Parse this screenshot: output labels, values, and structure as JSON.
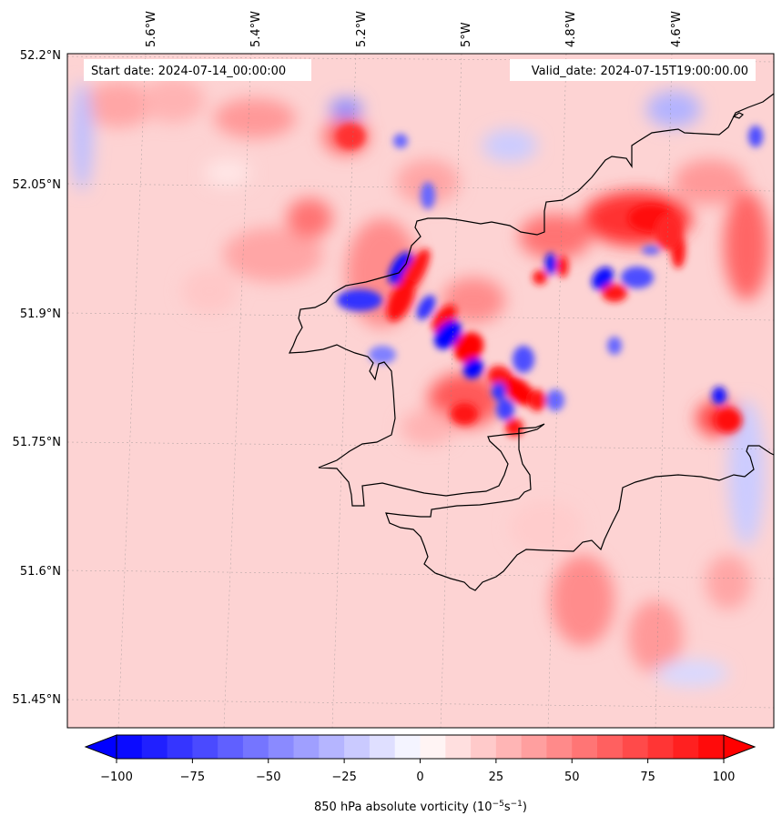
{
  "figure": {
    "start_label": "Start date: 2024-07-14_00:00:00",
    "valid_label": "Valid_date: 2024-07-15T19:00:00.00"
  },
  "map": {
    "lon_labels": [
      "5.6°W",
      "5.4°W",
      "5.2°W",
      "5°W",
      "4.8°W",
      "4.6°W"
    ],
    "lat_labels": [
      "52.2°N",
      "52.05°N",
      "51.9°N",
      "51.75°N",
      "51.6°N",
      "51.45°N"
    ]
  },
  "colorbar": {
    "ticks": [
      "−100",
      "−75",
      "−50",
      "−25",
      "0",
      "25",
      "50",
      "75",
      "100"
    ],
    "label": "850 hPa absolute vorticity (10",
    "label_exp1": "−5",
    "label_mid": "s",
    "label_exp2": "−1",
    "label_end": ")",
    "colors": {
      "min": "#0000ff",
      "mid": "#ffffff",
      "max": "#ff0000"
    }
  },
  "chart_data": {
    "type": "heatmap",
    "variable": "850 hPa absolute vorticity",
    "units": "10^-5 s^-1",
    "color_range": [
      -100,
      100
    ],
    "extend": "both",
    "lon_ticks": [
      -5.6,
      -5.4,
      -5.2,
      -5.0,
      -4.8,
      -4.6
    ],
    "lat_ticks": [
      52.2,
      52.05,
      51.9,
      51.75,
      51.6,
      51.45
    ],
    "background_value": 20
  }
}
